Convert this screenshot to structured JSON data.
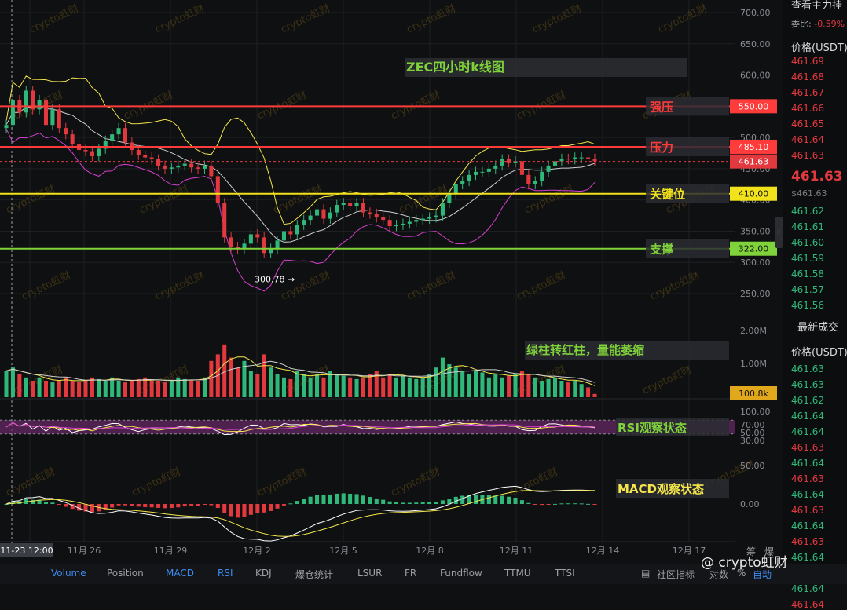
{
  "colors": {
    "background": "#0f1012",
    "up": "#30b87a",
    "down": "#e2393f",
    "resistance_strong": "#ff3b3b",
    "resistance": "#ff3b3b",
    "key_level": "#f2e21b",
    "support": "#7fd23a",
    "ma_white": "#cfcfcf",
    "band_yellow": "#f4e64a",
    "band_magenta": "#d63fd0",
    "rsi_band": "#6a2a6a"
  },
  "chart_data": {
    "type": "candlestick",
    "title": "ZEC四小时k线图",
    "ylim": [
      250,
      700
    ],
    "y_ticks": [
      "700.00",
      "650.00",
      "600.00",
      "550.00",
      "500.00",
      "450.00",
      "400.00",
      "350.00",
      "300.00",
      "250.00"
    ],
    "x_ticks": [
      "11-23 12:00",
      "11月 26",
      "11月 29",
      "12月 2",
      "12月 5",
      "12月 8",
      "12月 11",
      "12月 14",
      "12月 17"
    ],
    "price_lines": [
      {
        "label": "强压",
        "value": 550.0,
        "tag": "550.00",
        "color": "#ff3b3b"
      },
      {
        "label": "压力",
        "value": 485.1,
        "tag": "485.10",
        "color": "#ff3b3b"
      },
      {
        "label": "关键位",
        "value": 410.0,
        "tag": "410.00",
        "color": "#f2e21b"
      },
      {
        "label": "支撑",
        "value": 322.0,
        "tag": "322.00",
        "color": "#7fd23a"
      }
    ],
    "last_price": {
      "value": 461.63,
      "tag": "461.63"
    },
    "low_marker": {
      "value": 300.78,
      "label": "300.78 →"
    },
    "series": [
      {
        "name": "close",
        "values": [
          520,
          560,
          540,
          575,
          545,
          560,
          520,
          545,
          515,
          505,
          490,
          480,
          478,
          470,
          482,
          495,
          505,
          515,
          492,
          480,
          472,
          468,
          465,
          455,
          450,
          452,
          455,
          458,
          452,
          450,
          455,
          438,
          395,
          340,
          325,
          322,
          330,
          345,
          340,
          315,
          322,
          335,
          350,
          345,
          360,
          368,
          375,
          385,
          370,
          380,
          392,
          395,
          390,
          395,
          380,
          378,
          372,
          368,
          358,
          360,
          362,
          365,
          368,
          370,
          372,
          375,
          395,
          410,
          425,
          430,
          440,
          445,
          445,
          450,
          455,
          465,
          460,
          462,
          440,
          425,
          430,
          445,
          455,
          462,
          466,
          465,
          468,
          468,
          466,
          462
        ]
      }
    ],
    "volume": {
      "tag": "100.8k",
      "ticks": [
        "2.00M",
        "1.00M"
      ],
      "annotation": "绿柱转红柱，量能萎缩",
      "values": [
        0.8,
        0.9,
        0.7,
        0.6,
        0.5,
        0.6,
        0.5,
        0.45,
        0.5,
        0.6,
        0.5,
        0.45,
        0.5,
        0.6,
        0.55,
        0.5,
        0.6,
        0.5,
        0.45,
        0.5,
        0.55,
        0.6,
        0.5,
        0.5,
        0.45,
        0.5,
        0.6,
        0.55,
        0.5,
        0.5,
        0.6,
        1.1,
        1.3,
        1.6,
        1.2,
        0.9,
        1.1,
        0.8,
        0.7,
        1.3,
        0.9,
        0.7,
        0.6,
        0.55,
        0.8,
        0.7,
        0.6,
        0.7,
        0.6,
        0.8,
        0.7,
        0.65,
        0.6,
        0.55,
        0.6,
        0.7,
        0.8,
        0.6,
        0.7,
        0.6,
        0.65,
        0.6,
        0.55,
        0.6,
        0.7,
        0.9,
        1.2,
        1.0,
        0.9,
        0.8,
        0.7,
        0.8,
        0.75,
        0.6,
        0.7,
        0.6,
        0.65,
        0.7,
        0.8,
        0.7,
        0.6,
        0.5,
        0.55,
        0.6,
        0.5,
        0.45,
        0.5,
        0.4,
        0.3,
        0.1
      ]
    },
    "rsi": {
      "ticks": [
        "100.00",
        "70.00",
        "50.00",
        "30.00"
      ],
      "annotation": "RSI观察状态"
    },
    "macd": {
      "ticks": [
        "50.00",
        "0.00"
      ],
      "annotation": "MACD观察状态"
    }
  },
  "right_panel": {
    "header_text": "查看主力挂",
    "ratio_label": "委比:",
    "ratio_value": "-0.59%",
    "price_header": "价格(USDT)",
    "asks": [
      "461.69",
      "461.68",
      "461.67",
      "461.66",
      "461.65",
      "461.64",
      "461.63"
    ],
    "last_price": "461.63",
    "last_price_sub": "$461.63",
    "bids": [
      "461.62",
      "461.61",
      "461.60",
      "461.59",
      "461.58",
      "461.57",
      "461.56"
    ],
    "trades_title": "最新成交",
    "trades_header": "价格(USDT)",
    "trades": [
      {
        "p": "461.63",
        "side": "up"
      },
      {
        "p": "461.63",
        "side": "up"
      },
      {
        "p": "461.62",
        "side": "up"
      },
      {
        "p": "461.64",
        "side": "up"
      },
      {
        "p": "461.64",
        "side": "up"
      },
      {
        "p": "461.63",
        "side": "down"
      },
      {
        "p": "461.64",
        "side": "up"
      },
      {
        "p": "461.63",
        "side": "down"
      },
      {
        "p": "461.64",
        "side": "up"
      },
      {
        "p": "461.63",
        "side": "down"
      },
      {
        "p": "461.64",
        "side": "up"
      },
      {
        "p": "461.63",
        "side": "down"
      },
      {
        "p": "461.64",
        "side": "up"
      },
      {
        "p": "461.63",
        "side": "down"
      },
      {
        "p": "461.64",
        "side": "up"
      },
      {
        "p": "461.64",
        "side": "down"
      }
    ]
  },
  "tabs": [
    "Volume",
    "Position",
    "MACD",
    "RSI",
    "KDJ",
    "爆仓统计",
    "LSUR",
    "FR",
    "Fundflow",
    "TTMU",
    "TTSI"
  ],
  "active_tabs": [
    "Volume",
    "MACD",
    "RSI"
  ],
  "bottom_right": [
    "社区指标",
    "对数",
    "%",
    "自动"
  ],
  "side_labels": [
    "筹",
    "爆"
  ],
  "watermark_text": "crypto虹财",
  "footer_watermark": "@ crypto虹财"
}
